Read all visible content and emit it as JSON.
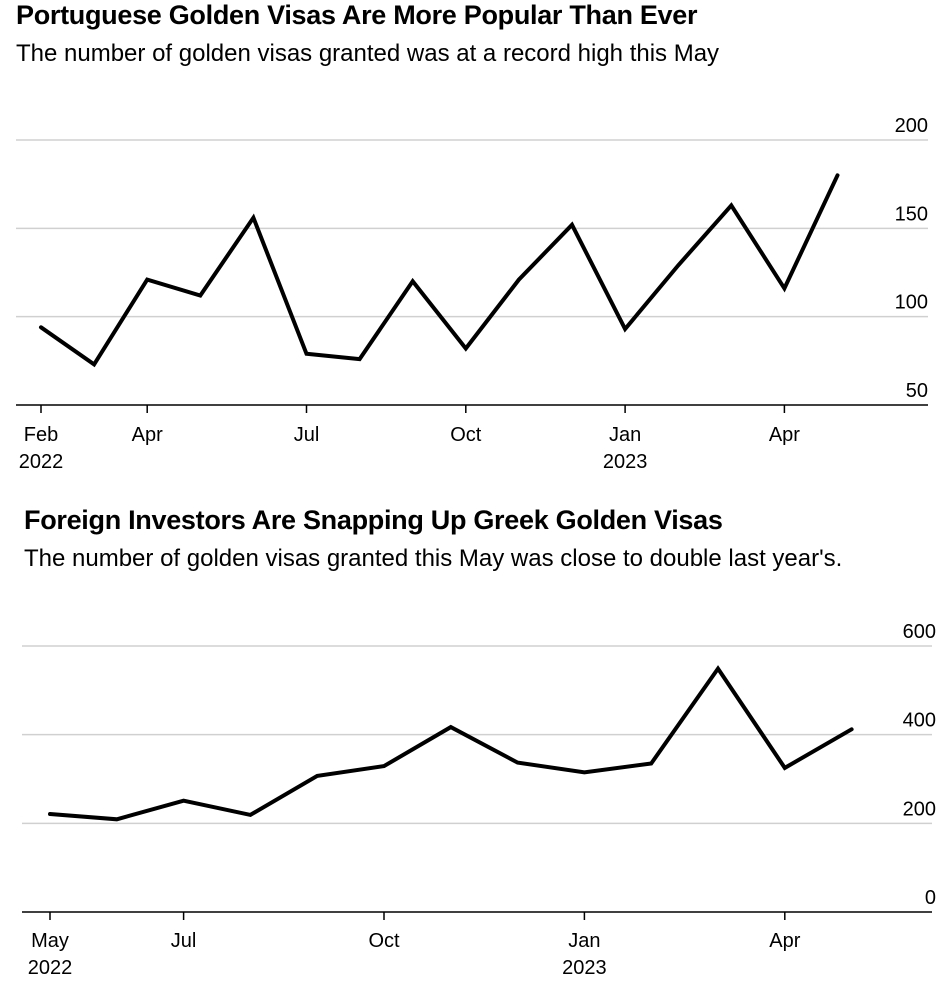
{
  "chart_data": [
    {
      "type": "line",
      "title": "Portuguese Golden Visas Are More Popular Than Ever",
      "subtitle": "The number of golden visas granted was at a record high this May",
      "x": [
        "2022-02",
        "2022-03",
        "2022-04",
        "2022-05",
        "2022-06",
        "2022-07",
        "2022-08",
        "2022-09",
        "2022-10",
        "2022-11",
        "2022-12",
        "2023-01",
        "2023-02",
        "2023-03",
        "2023-04",
        "2023-05"
      ],
      "series": [
        {
          "name": "Golden visas granted",
          "values": [
            94,
            73,
            121,
            112,
            156,
            79,
            76,
            120,
            82,
            121,
            152,
            93,
            129,
            163,
            116,
            180
          ]
        }
      ],
      "ylim": [
        50,
        200
      ],
      "yticks": [
        {
          "value": 200,
          "label": "200"
        },
        {
          "value": 150,
          "label": "150"
        },
        {
          "value": 100,
          "label": "100"
        },
        {
          "value": 50,
          "label": "50"
        }
      ],
      "xticks": [
        {
          "index": 0,
          "label": "Feb",
          "year": "2022"
        },
        {
          "index": 2,
          "label": "Apr",
          "year": ""
        },
        {
          "index": 5,
          "label": "Jul",
          "year": ""
        },
        {
          "index": 8,
          "label": "Oct",
          "year": ""
        },
        {
          "index": 11,
          "label": "Jan",
          "year": "2023"
        },
        {
          "index": 14,
          "label": "Apr",
          "year": ""
        }
      ],
      "xlabel": "",
      "ylabel": "",
      "grid": true
    },
    {
      "type": "line",
      "title": "Foreign Investors Are Snapping Up Greek Golden Visas",
      "subtitle": "The number of golden visas granted this May was close to double last year's.",
      "x": [
        "2022-05",
        "2022-06",
        "2022-07",
        "2022-08",
        "2022-09",
        "2022-10",
        "2022-11",
        "2022-12",
        "2023-01",
        "2023-02",
        "2023-03",
        "2023-04",
        "2023-05"
      ],
      "series": [
        {
          "name": "Golden visas granted",
          "values": [
            221,
            209,
            251,
            219,
            307,
            329,
            417,
            337,
            315,
            335,
            549,
            325,
            412
          ]
        }
      ],
      "ylim": [
        0,
        600
      ],
      "yticks": [
        {
          "value": 600,
          "label": "600"
        },
        {
          "value": 400,
          "label": "400"
        },
        {
          "value": 200,
          "label": "200"
        },
        {
          "value": 0,
          "label": "0"
        }
      ],
      "xticks": [
        {
          "index": 0,
          "label": "May",
          "year": "2022"
        },
        {
          "index": 2,
          "label": "Jul",
          "year": ""
        },
        {
          "index": 5,
          "label": "Oct",
          "year": ""
        },
        {
          "index": 8,
          "label": "Jan",
          "year": "2023"
        },
        {
          "index": 11,
          "label": "Apr",
          "year": ""
        }
      ],
      "xlabel": "",
      "ylabel": "",
      "grid": true
    }
  ]
}
